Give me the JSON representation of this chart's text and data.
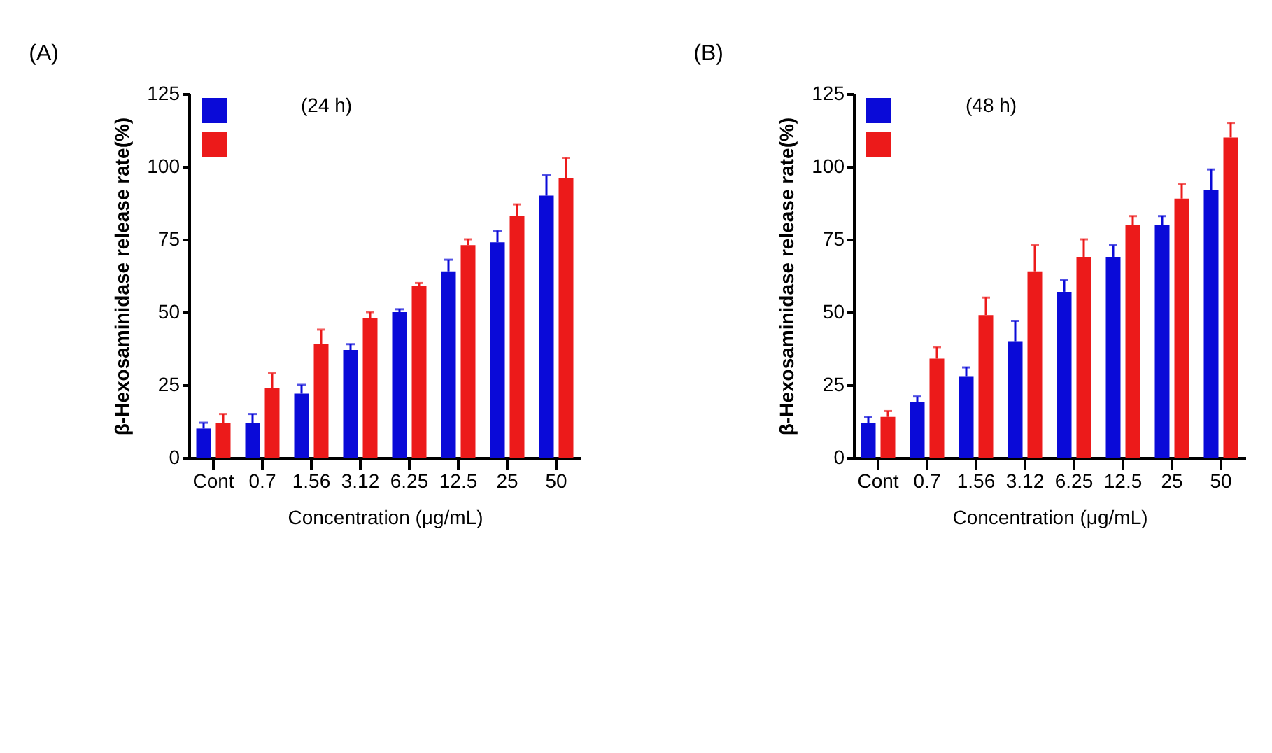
{
  "chart_data": [
    {
      "type": "bar",
      "title": "(A)",
      "annotations": [
        "(24 h)"
      ],
      "xlabel": "Concentration (μg/mL)",
      "ylabel": "β-Hexosaminidase release rate(%)",
      "categories": [
        "Cont",
        "0.7",
        "1.56",
        "3.12",
        "6.25",
        "12.5",
        "25",
        "50"
      ],
      "series": [
        {
          "color": "#0a0ad8",
          "values": [
            10,
            12,
            22,
            37,
            50,
            64,
            74,
            90
          ],
          "errors": [
            [
              10,
              12
            ],
            [
              12,
              15
            ],
            [
              22,
              25
            ],
            [
              37,
              39
            ],
            [
              50,
              51
            ],
            [
              64,
              68
            ],
            [
              74,
              78
            ],
            [
              90,
              97
            ]
          ]
        },
        {
          "color": "#ec1a1a",
          "values": [
            12,
            24,
            39,
            48,
            59,
            73,
            83,
            96
          ],
          "errors": [
            [
              12,
              15
            ],
            [
              24,
              29
            ],
            [
              39,
              44
            ],
            [
              48,
              50
            ],
            [
              59,
              60
            ],
            [
              73,
              75
            ],
            [
              83,
              87
            ],
            [
              96,
              103
            ]
          ]
        }
      ],
      "ylim": [
        0,
        125
      ],
      "yticks": [
        0,
        25,
        50,
        75,
        100,
        125
      ],
      "grid": false
    },
    {
      "type": "bar",
      "title": "(B)",
      "annotations": [
        "(48 h)"
      ],
      "xlabel": "Concentration (μg/mL)",
      "ylabel": "β-Hexosaminidase release rate(%)",
      "categories": [
        "Cont",
        "0.7",
        "1.56",
        "3.12",
        "6.25",
        "12.5",
        "25",
        "50"
      ],
      "series": [
        {
          "color": "#0a0ad8",
          "values": [
            12,
            19,
            28,
            40,
            57,
            69,
            80,
            92
          ],
          "errors": [
            [
              12,
              14
            ],
            [
              19,
              21
            ],
            [
              28,
              31
            ],
            [
              40,
              47
            ],
            [
              57,
              61
            ],
            [
              69,
              73
            ],
            [
              80,
              83
            ],
            [
              92,
              99
            ]
          ]
        },
        {
          "color": "#ec1a1a",
          "values": [
            14,
            34,
            49,
            64,
            69,
            80,
            89,
            110
          ],
          "errors": [
            [
              14,
              16
            ],
            [
              34,
              38
            ],
            [
              49,
              55
            ],
            [
              64,
              73
            ],
            [
              69,
              75
            ],
            [
              80,
              83
            ],
            [
              89,
              94
            ],
            [
              110,
              115
            ]
          ]
        }
      ],
      "ylim": [
        0,
        125
      ],
      "yticks": [
        0,
        25,
        50,
        75,
        100,
        125
      ],
      "grid": false
    }
  ]
}
